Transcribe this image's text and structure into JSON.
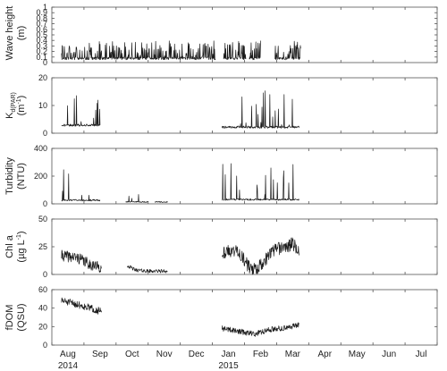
{
  "chart_data": {
    "type": "line",
    "x_axis": {
      "month_labels": [
        "Aug",
        "Sep",
        "Oct",
        "Nov",
        "Dec",
        "Jan",
        "Feb",
        "Mar",
        "Apr",
        "May",
        "Jun",
        "Jul"
      ],
      "year_labels": [
        {
          "label": "2014",
          "month": "Aug"
        },
        {
          "label": "2015",
          "month": "Jan"
        }
      ],
      "range_months": [
        0,
        12
      ]
    },
    "panels": [
      {
        "ylabel": "Wave height (m)",
        "ylabel_lines": [
          "Wave height",
          "(m)"
        ],
        "ylim": [
          0,
          1
        ],
        "yticks": [
          "0",
          "0.1",
          "0.2",
          "0.3",
          "0.4",
          "0.5",
          "0.6",
          "0.7",
          "0.8",
          "0.9",
          "1"
        ],
        "yticks_values": [
          0,
          0.1,
          0.2,
          0.3,
          0.4,
          0.5,
          0.6,
          0.7,
          0.8,
          0.9,
          1
        ],
        "grid": false,
        "segments": [
          {
            "start": 0.3,
            "end": 5.1,
            "base": 0.05,
            "noise": 0.05,
            "spike_rate": 0.35,
            "spike_max": 0.3,
            "seed": 11
          },
          {
            "start": 5.35,
            "end": 6.05,
            "base": 0.05,
            "noise": 0.05,
            "spike_rate": 0.3,
            "spike_max": 0.3,
            "seed": 12
          },
          {
            "start": 6.15,
            "end": 6.5,
            "base": 0.05,
            "noise": 0.05,
            "spike_rate": 0.3,
            "spike_max": 0.3,
            "seed": 13
          },
          {
            "start": 6.95,
            "end": 7.75,
            "base": 0.05,
            "noise": 0.05,
            "spike_rate": 0.35,
            "spike_max": 0.32,
            "seed": 14
          }
        ]
      },
      {
        "ylabel": "K_d(PAR) (m^-1)",
        "ylabel_lines": [
          "K",
          "(m"
        ],
        "ylim": [
          0,
          20
        ],
        "yticks": [
          "0",
          "10",
          "20"
        ],
        "yticks_values": [
          0,
          10,
          20
        ],
        "grid": false,
        "segments": [
          {
            "start": 0.3,
            "end": 1.5,
            "base": 2.5,
            "noise": 0.8,
            "spike_rate": 0.08,
            "spike_max": 12,
            "seed": 21
          },
          {
            "start": 5.3,
            "end": 7.7,
            "base": 1.8,
            "noise": 0.8,
            "spike_rate": 0.06,
            "spike_max": 13,
            "seed": 22
          }
        ]
      },
      {
        "ylabel": "Turbidity (NTU)",
        "ylabel_lines": [
          "Turbidity",
          "(NTU)"
        ],
        "ylim": [
          0,
          400
        ],
        "yticks": [
          "0",
          "200",
          "400"
        ],
        "yticks_values": [
          0,
          200,
          400
        ],
        "grid": false,
        "segments": [
          {
            "start": 0.3,
            "end": 1.5,
            "base": 20,
            "noise": 12,
            "spike_rate": 0.09,
            "spike_max": 230,
            "seed": 31
          },
          {
            "start": 2.3,
            "end": 3.0,
            "base": 10,
            "noise": 8,
            "spike_rate": 0.05,
            "spike_max": 60,
            "seed": 32
          },
          {
            "start": 3.2,
            "end": 3.6,
            "base": 10,
            "noise": 8,
            "spike_rate": 0.05,
            "spike_max": 40,
            "seed": 33
          },
          {
            "start": 5.3,
            "end": 7.7,
            "base": 25,
            "noise": 12,
            "spike_rate": 0.08,
            "spike_max": 260,
            "seed": 34
          }
        ]
      },
      {
        "ylabel": "Chl a (µg L^-1)",
        "ylabel_lines": [
          "Chl a",
          "(µg L"
        ],
        "ylim": [
          0,
          50
        ],
        "yticks": [
          "0",
          "25",
          "50"
        ],
        "yticks_values": [
          0,
          25,
          50
        ],
        "grid": false,
        "segments": [
          {
            "start": 0.3,
            "end": 1.55,
            "trend": [
              [
                0.3,
                17
              ],
              [
                0.8,
                15
              ],
              [
                1.2,
                9
              ],
              [
                1.55,
                6
              ]
            ],
            "noise": 5,
            "seed": 41
          },
          {
            "start": 2.35,
            "end": 3.6,
            "trend": [
              [
                2.35,
                8
              ],
              [
                2.6,
                4
              ],
              [
                3.0,
                3
              ],
              [
                3.6,
                3
              ]
            ],
            "noise": 1.6,
            "seed": 42
          },
          {
            "start": 5.3,
            "end": 7.7,
            "trend": [
              [
                5.3,
                20
              ],
              [
                5.8,
                22
              ],
              [
                6.0,
                12
              ],
              [
                6.25,
                3
              ],
              [
                6.55,
                10
              ],
              [
                6.9,
                22
              ],
              [
                7.3,
                25
              ],
              [
                7.5,
                28
              ],
              [
                7.7,
                20
              ]
            ],
            "noise": 6,
            "seed": 43
          }
        ]
      },
      {
        "ylabel": "fDOM (QSU)",
        "ylabel_lines": [
          "fDOM",
          "(QSU)"
        ],
        "ylim": [
          0,
          60
        ],
        "yticks": [
          "0",
          "20",
          "40",
          "60"
        ],
        "yticks_values": [
          0,
          20,
          40,
          60
        ],
        "grid": false,
        "segments": [
          {
            "start": 0.3,
            "end": 1.55,
            "trend": [
              [
                0.3,
                48
              ],
              [
                0.8,
                44
              ],
              [
                1.2,
                40
              ],
              [
                1.55,
                36
              ]
            ],
            "noise": 4,
            "seed": 51
          },
          {
            "start": 5.3,
            "end": 7.7,
            "trend": [
              [
                5.3,
                18
              ],
              [
                5.8,
                15
              ],
              [
                6.3,
                12
              ],
              [
                6.8,
                17
              ],
              [
                7.3,
                19
              ],
              [
                7.7,
                22
              ]
            ],
            "noise": 3,
            "seed": 52
          }
        ]
      }
    ]
  }
}
